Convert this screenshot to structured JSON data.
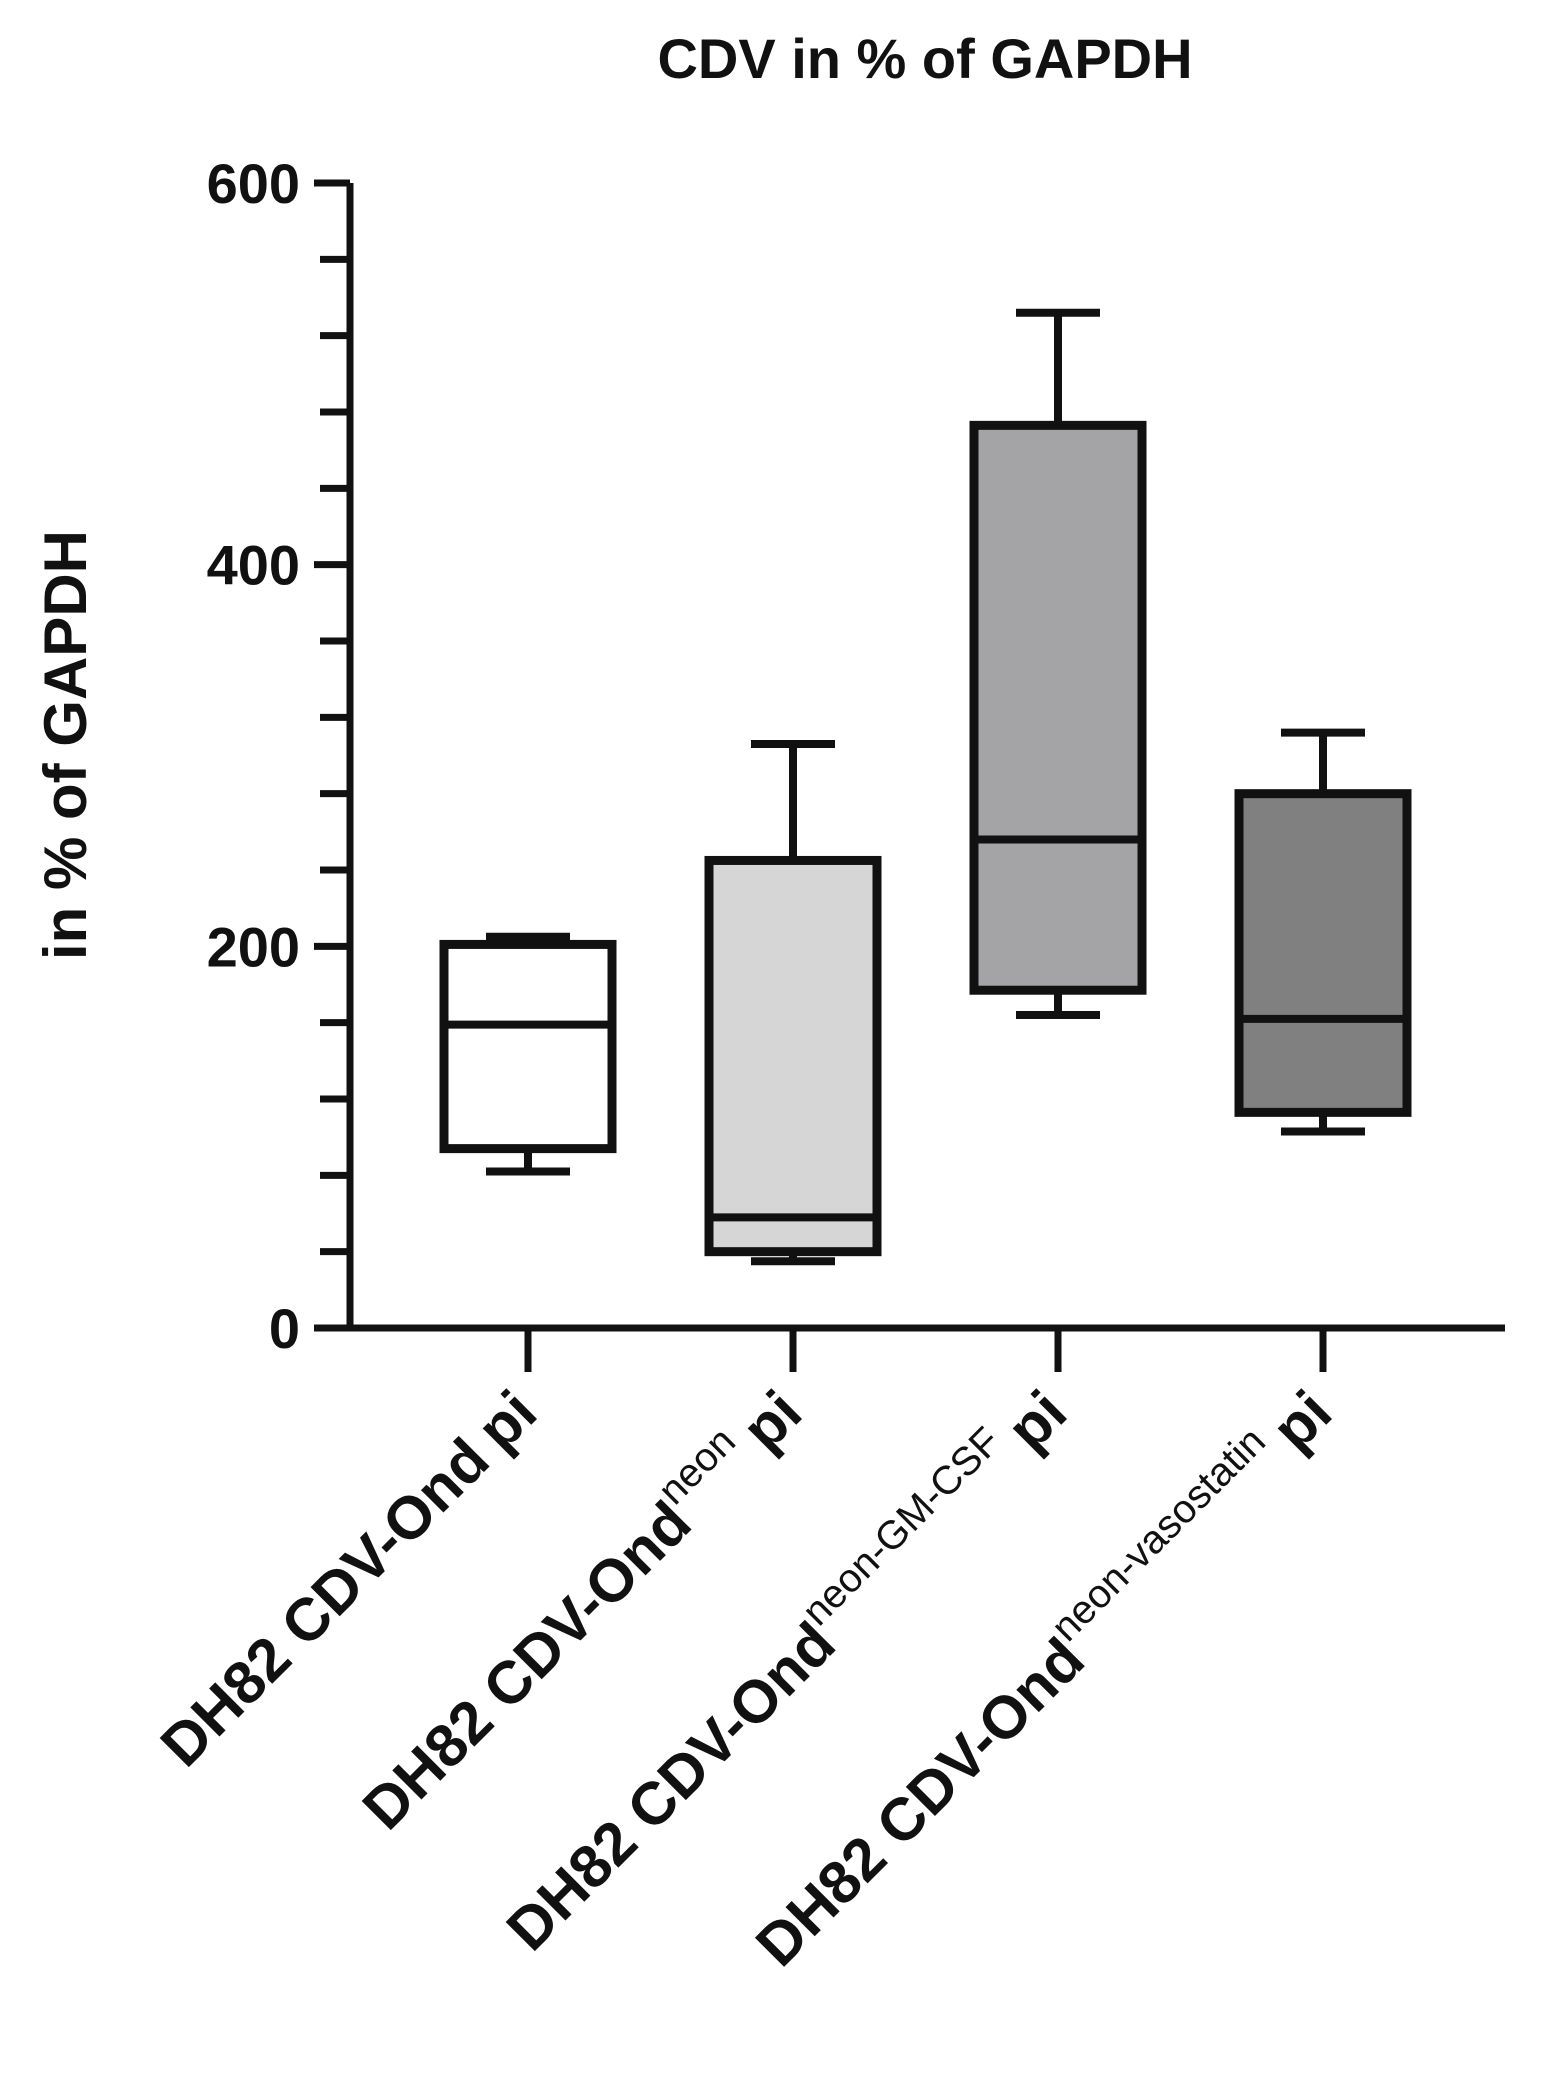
{
  "chart_data": {
    "type": "box",
    "title": "CDV in % of GAPDH",
    "ylabel": "in % of GAPDH",
    "xlabel": "",
    "ylim": [
      0,
      600
    ],
    "y_major_ticks": [
      0,
      200,
      400,
      600
    ],
    "y_minor_step": 40,
    "categories": [
      {
        "main": "DH82 CDV-Ond",
        "sup": "",
        "suffix": "pi"
      },
      {
        "main": "DH82 CDV-Ond",
        "sup": "neon",
        "suffix": "pi"
      },
      {
        "main": "DH82 CDV-Ond",
        "sup": "neon-GM-CSF",
        "suffix": "pi"
      },
      {
        "main": "DH82 CDV-Ond",
        "sup": "neon-vasostatin",
        "suffix": "pi"
      }
    ],
    "series": [
      {
        "name": "DH82 CDV-Ond pi",
        "min": 82,
        "q1": 94,
        "median": 159,
        "q3": 201,
        "max": 205,
        "fill": "#ffffff"
      },
      {
        "name": "DH82 CDV-Ond neon pi",
        "min": 35,
        "q1": 40,
        "median": 58,
        "q3": 245,
        "max": 306,
        "fill": "#d6d6d6"
      },
      {
        "name": "DH82 CDV-Ond neon-GM-CSF pi",
        "min": 164,
        "q1": 177,
        "median": 256,
        "q3": 473,
        "max": 532,
        "fill": "#a4a4a6"
      },
      {
        "name": "DH82 CDV-Ond neon-vasostatin pi",
        "min": 103,
        "q1": 113,
        "median": 162,
        "q3": 280,
        "max": 312,
        "fill": "#808080"
      }
    ]
  }
}
